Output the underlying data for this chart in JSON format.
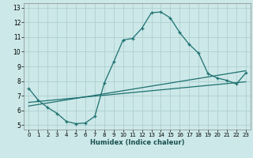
{
  "xlabel": "Humidex (Indice chaleur)",
  "bg_color": "#cce8e8",
  "grid_color": "#b0d0d0",
  "line_color": "#1e7070",
  "xlim": [
    -0.5,
    23.5
  ],
  "ylim": [
    4.7,
    13.3
  ],
  "xticks": [
    0,
    1,
    2,
    3,
    4,
    5,
    6,
    7,
    8,
    9,
    10,
    11,
    12,
    13,
    14,
    15,
    16,
    17,
    18,
    19,
    20,
    21,
    22,
    23
  ],
  "yticks": [
    5,
    6,
    7,
    8,
    9,
    10,
    11,
    12,
    13
  ],
  "main_line": {
    "x": [
      0,
      1,
      2,
      3,
      4,
      5,
      6,
      7,
      8,
      9,
      10,
      11,
      12,
      13,
      14,
      15,
      16,
      17,
      18,
      19,
      20,
      21,
      22,
      23
    ],
    "y": [
      7.5,
      6.7,
      6.2,
      5.8,
      5.25,
      5.1,
      5.15,
      5.6,
      7.85,
      9.3,
      10.8,
      10.9,
      11.6,
      12.65,
      12.7,
      12.3,
      11.3,
      10.5,
      9.9,
      8.5,
      8.2,
      8.05,
      7.8,
      8.55
    ]
  },
  "line2": {
    "x": [
      0,
      23
    ],
    "y": [
      6.3,
      8.7
    ]
  },
  "line3": {
    "x": [
      0,
      23
    ],
    "y": [
      6.55,
      7.95
    ]
  }
}
